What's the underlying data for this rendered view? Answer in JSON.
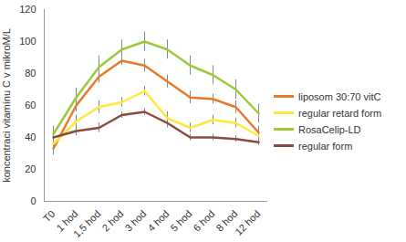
{
  "chart_data": {
    "type": "line",
    "y_label": "koncentraci vitamínu C v mikroM/L",
    "categories": [
      "T0",
      "1 hod",
      "1,5 hod",
      "2 hod",
      "3 hod",
      "4 hod",
      "5 hod",
      "6 hod",
      "8 hod",
      "12 hod"
    ],
    "series": [
      {
        "name": "liposom 30:70 vitC",
        "color": "#e8792b",
        "values": [
          33,
          60,
          78,
          88,
          85,
          75,
          65,
          64,
          59,
          43
        ],
        "errors": [
          4,
          4,
          4,
          3,
          4,
          4,
          4,
          3,
          4,
          4
        ]
      },
      {
        "name": "regular retard form",
        "color": "#ffe83a",
        "values": [
          36,
          50,
          59,
          62,
          69,
          52,
          46,
          51,
          49,
          41
        ],
        "errors": [
          5,
          4,
          4,
          3,
          3,
          4,
          3,
          3,
          3,
          3
        ]
      },
      {
        "name": "RosaCelip-LD",
        "color": "#9bc93a",
        "values": [
          42,
          65,
          84,
          95,
          100,
          95,
          85,
          79,
          70,
          55
        ],
        "errors": [
          5,
          6,
          7,
          6,
          6,
          6,
          6,
          6,
          6,
          6
        ]
      },
      {
        "name": "regular form",
        "color": "#8b4a3c",
        "values": [
          40,
          44,
          46,
          54,
          56,
          49,
          40,
          40,
          39,
          37
        ],
        "errors": [
          3,
          3,
          3,
          2,
          2,
          3,
          2,
          2,
          2,
          2
        ]
      }
    ],
    "ylim": [
      0,
      120
    ],
    "yticks": [
      0,
      20,
      40,
      60,
      80,
      100,
      120
    ],
    "grid": false,
    "legend": "right"
  }
}
